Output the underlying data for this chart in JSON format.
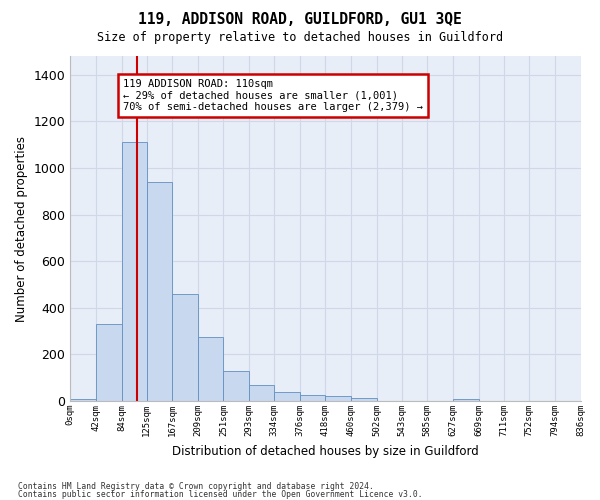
{
  "title": "119, ADDISON ROAD, GUILDFORD, GU1 3QE",
  "subtitle": "Size of property relative to detached houses in Guildford",
  "xlabel": "Distribution of detached houses by size in Guildford",
  "ylabel": "Number of detached properties",
  "bar_color": "#c8d8ef",
  "bar_edge_color": "#6090c0",
  "background_color": "#e8eef8",
  "grid_color": "#d0d8e8",
  "vline_color": "#cc0000",
  "annotation_box_edgecolor": "#cc0000",
  "footer_line1": "Contains HM Land Registry data © Crown copyright and database right 2024.",
  "footer_line2": "Contains public sector information licensed under the Open Government Licence v3.0.",
  "bin_edges": [
    0,
    42,
    84,
    125,
    167,
    209,
    251,
    293,
    334,
    376,
    418,
    460,
    502,
    543,
    585,
    627,
    669,
    711,
    752,
    794,
    836
  ],
  "bin_labels": [
    "0sqm",
    "42sqm",
    "84sqm",
    "125sqm",
    "167sqm",
    "209sqm",
    "251sqm",
    "293sqm",
    "334sqm",
    "376sqm",
    "418sqm",
    "460sqm",
    "502sqm",
    "543sqm",
    "585sqm",
    "627sqm",
    "669sqm",
    "711sqm",
    "752sqm",
    "794sqm",
    "836sqm"
  ],
  "bar_heights": [
    10,
    330,
    1110,
    940,
    460,
    275,
    130,
    68,
    40,
    25,
    22,
    15,
    0,
    0,
    0,
    10,
    0,
    0,
    0,
    0
  ],
  "vline_val": 110,
  "ylim": [
    0,
    1480
  ],
  "yticks": [
    0,
    200,
    400,
    600,
    800,
    1000,
    1200,
    1400
  ],
  "annotation_text": "119 ADDISON ROAD: 110sqm\n← 29% of detached houses are smaller (1,001)\n70% of semi-detached houses are larger (2,379) →"
}
